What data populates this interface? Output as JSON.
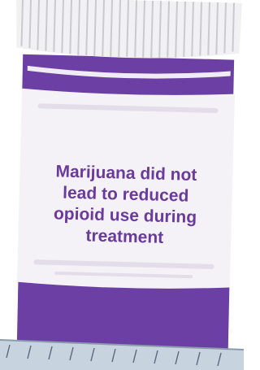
{
  "label": {
    "lines": [
      "Marijuana did not",
      "lead to reduced",
      "opioid use during",
      "treatment"
    ]
  }
}
